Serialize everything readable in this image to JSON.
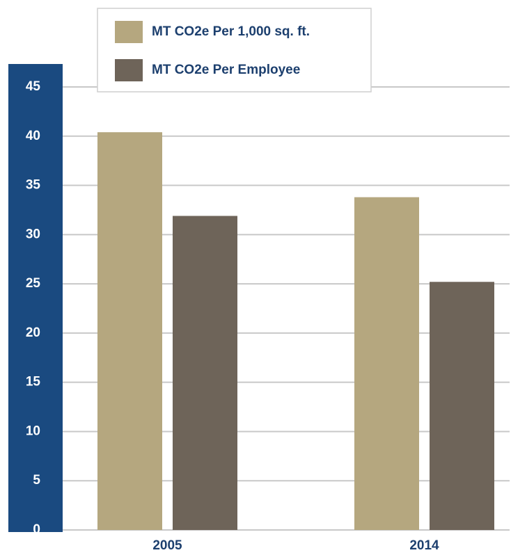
{
  "chart_data": {
    "type": "bar",
    "categories": [
      "2005",
      "2014"
    ],
    "series": [
      {
        "name": "MT CO2e Per 1,000 sq. ft.",
        "color": "#b5a77f",
        "values": [
          40.4,
          33.8
        ]
      },
      {
        "name": "MT CO2e Per Employee",
        "color": "#6e6459",
        "values": [
          31.9,
          25.2
        ]
      }
    ],
    "ylim": [
      0,
      45
    ],
    "yticks": [
      0,
      5,
      10,
      15,
      20,
      25,
      30,
      35,
      40,
      45
    ],
    "grid": true
  }
}
